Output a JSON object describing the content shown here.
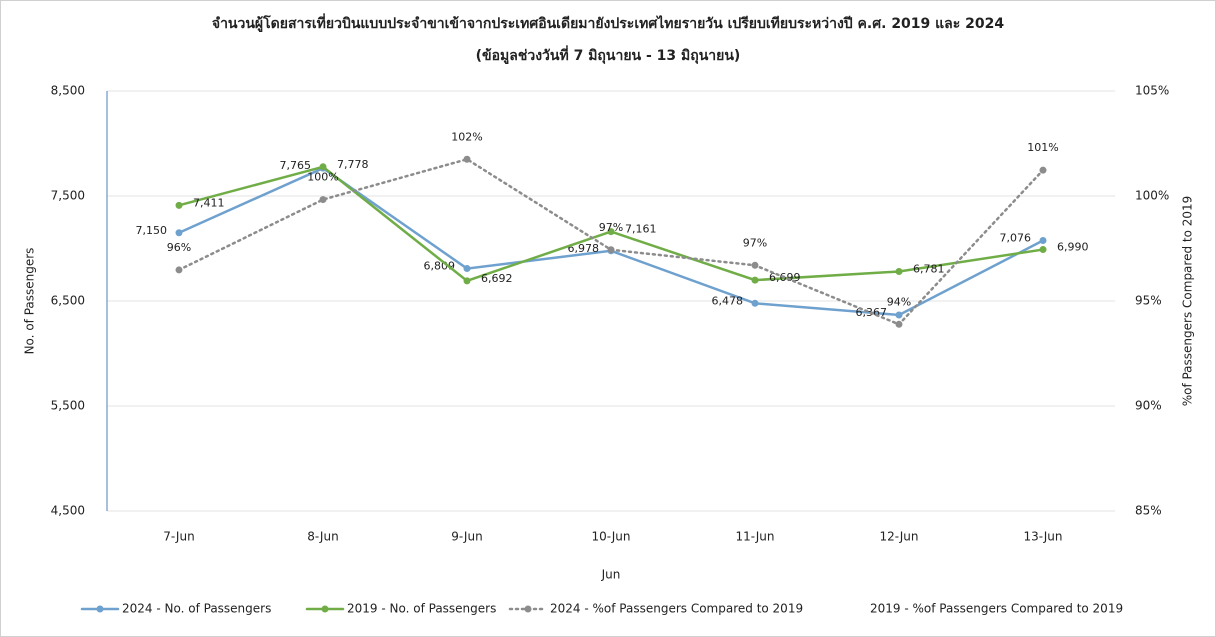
{
  "chart_data": {
    "type": "line",
    "title": "จำนวนผู้โดยสารเที่ยวบินแบบประจำขาเข้าจากประเทศอินเดียมายังประเทศไทยรายวัน เปรียบเทียบระหว่างปี ค.ศ. 2019 และ 2024",
    "subtitle": "(ข้อมูลช่วงวันที่ 7 มิถุนายน - 13 มิถุนายน)",
    "x_label": "Jun",
    "y_label": "No. of Passengers",
    "y2_label": "%of Passengers Compared to 2019",
    "categories": [
      "7-Jun",
      "8-Jun",
      "9-Jun",
      "10-Jun",
      "11-Jun",
      "12-Jun",
      "13-Jun"
    ],
    "ylim": [
      4500,
      8500
    ],
    "yticks": [
      {
        "value": 4500,
        "label": "4,500"
      },
      {
        "value": 5500,
        "label": "5,500"
      },
      {
        "value": 6500,
        "label": "6,500"
      },
      {
        "value": 7500,
        "label": "7,500"
      },
      {
        "value": 8500,
        "label": "8,500"
      }
    ],
    "y2lim": [
      85,
      105
    ],
    "y2ticks": [
      {
        "value": 85,
        "label": "85%"
      },
      {
        "value": 90,
        "label": "90%"
      },
      {
        "value": 95,
        "label": "95%"
      },
      {
        "value": 100,
        "label": "100%"
      },
      {
        "value": 105,
        "label": "105%"
      }
    ],
    "grid": true,
    "legend": "bottom",
    "series": [
      {
        "name": "2024 - No. of Passengers",
        "color": "#6fa1cf",
        "style": "solid",
        "values": [
          7150,
          7765,
          6809,
          6978,
          6478,
          6367,
          7076
        ],
        "value_labels": [
          "7,150",
          "7,765",
          "6,809",
          "6,978",
          "6,478",
          "6,367",
          "7,076"
        ]
      },
      {
        "name": "2019 - No. of Passengers",
        "color": "#70ad47",
        "style": "solid",
        "values": [
          7411,
          7778,
          6692,
          7161,
          6699,
          6781,
          6990
        ],
        "value_labels": [
          "7,411",
          "7,778",
          "6,692",
          "7,161",
          "6,699",
          "6,781",
          "6,990"
        ]
      },
      {
        "name": "2024 - %of Passengers Compared to 2019",
        "color": "#8c8c8c",
        "style": "dotted",
        "axis": "y2",
        "values": [
          96.48,
          99.83,
          101.75,
          97.44,
          96.7,
          93.89,
          101.23
        ],
        "value_labels": [
          "96%",
          "100%",
          "102%",
          "97%",
          "97%",
          "94%",
          "101%"
        ]
      },
      {
        "name": "2019 - %of Passengers Compared to 2019",
        "color": "#ffffff",
        "style": "none",
        "axis": "y2",
        "values": [
          null,
          null,
          null,
          null,
          null,
          null,
          null
        ]
      }
    ]
  }
}
